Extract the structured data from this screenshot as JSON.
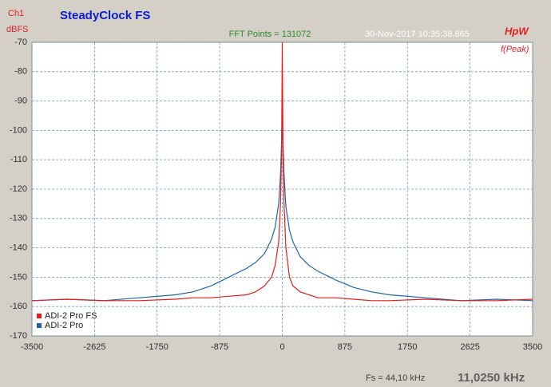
{
  "chart_data": {
    "type": "line",
    "title": "SteadyClock FS",
    "channel": "Ch1",
    "ylabel": "dBFS",
    "subtitle": "FFT Points = 131072",
    "timestamp": "30-Nov-2017 10:35:38.865",
    "window": "HpW",
    "marker": "f(Peak)",
    "sample_rate": "Fs = 44,10 kHz",
    "center": "11,0250 kHz",
    "x": [
      -3500,
      -3000,
      -2500,
      -2000,
      -1500,
      -1250,
      -1000,
      -750,
      -500,
      -375,
      -250,
      -150,
      -100,
      -50,
      -25,
      -10,
      0,
      10,
      25,
      50,
      100,
      150,
      250,
      375,
      500,
      750,
      1000,
      1250,
      1500,
      2000,
      2500,
      3000,
      3500
    ],
    "series": [
      {
        "name": "ADI-2 Pro",
        "color": "#1f64a8",
        "values": [
          -158,
          -157.5,
          -158,
          -157,
          -156,
          -155,
          -153,
          -150,
          -147,
          -145,
          -142,
          -137,
          -133,
          -125,
          -115,
          -104,
          -95,
          -104,
          -115,
          -126,
          -134,
          -138,
          -143,
          -146,
          -148,
          -151,
          -153.5,
          -155,
          -156,
          -157,
          -158,
          -157.5,
          -158
        ]
      },
      {
        "name": "ADI-2 Pro FS",
        "color": "#e01e1e",
        "values": [
          -158,
          -157.5,
          -158,
          -158,
          -157.5,
          -157,
          -157,
          -156.5,
          -156,
          -155,
          -153,
          -150,
          -146,
          -138,
          -125,
          -108,
          -70,
          -108,
          -125,
          -140,
          -150,
          -153,
          -155,
          -156,
          -157,
          -157,
          -157.5,
          -158,
          -158,
          -157.5,
          -158,
          -158,
          -157.5
        ]
      }
    ],
    "xlim": [
      -3500,
      3500
    ],
    "ylim": [
      -170,
      -70
    ],
    "xticks": [
      -3500,
      -2625,
      -1750,
      -875,
      0,
      875,
      1750,
      2625,
      3500
    ],
    "yticks": [
      -170,
      -160,
      -150,
      -140,
      -130,
      -120,
      -110,
      -100,
      -90,
      -80,
      -70
    ],
    "grid": true
  }
}
